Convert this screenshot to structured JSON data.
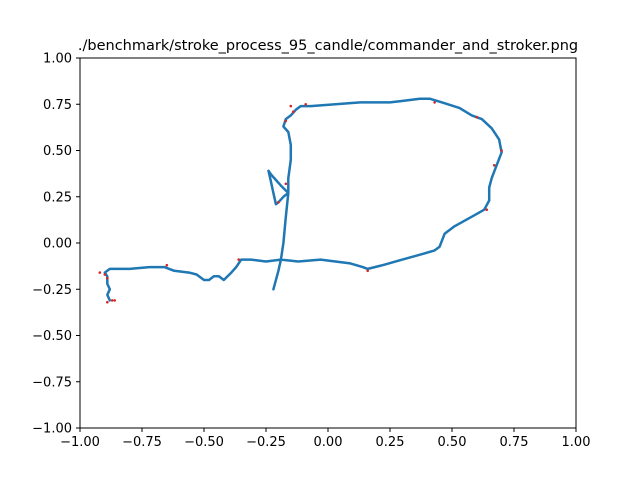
{
  "chart_data": {
    "type": "line",
    "title": "./benchmark/stroke_process_95_candle/commander_and_stroker.png",
    "xlabel": "",
    "ylabel": "",
    "xlim": [
      -1.0,
      1.0
    ],
    "ylim": [
      -1.0,
      1.0
    ],
    "xticks": [
      "−1.00",
      "−0.75",
      "−0.50",
      "−0.25",
      "0.00",
      "0.25",
      "0.50",
      "0.75",
      "1.00"
    ],
    "yticks": [
      "−1.00",
      "−0.75",
      "−0.50",
      "−0.25",
      "0.00",
      "0.25",
      "0.50",
      "0.75",
      "1.00"
    ],
    "grid": false,
    "colors": {
      "stroke": "#1f77b4",
      "points": "#d62728"
    },
    "series": [
      {
        "color": "#1f77b4",
        "points": [
          [
            -0.88,
            -0.31
          ],
          [
            -0.89,
            -0.28
          ],
          [
            -0.88,
            -0.25
          ],
          [
            -0.89,
            -0.22
          ],
          [
            -0.89,
            -0.18
          ],
          [
            -0.9,
            -0.16
          ],
          [
            -0.88,
            -0.14
          ],
          [
            -0.8,
            -0.14
          ],
          [
            -0.72,
            -0.13
          ],
          [
            -0.66,
            -0.13
          ],
          [
            -0.62,
            -0.15
          ],
          [
            -0.56,
            -0.16
          ],
          [
            -0.53,
            -0.17
          ],
          [
            -0.5,
            -0.2
          ],
          [
            -0.48,
            -0.2
          ],
          [
            -0.46,
            -0.18
          ],
          [
            -0.44,
            -0.18
          ],
          [
            -0.42,
            -0.2
          ],
          [
            -0.39,
            -0.16
          ],
          [
            -0.37,
            -0.13
          ],
          [
            -0.35,
            -0.09
          ],
          [
            -0.31,
            -0.09
          ],
          [
            -0.25,
            -0.1
          ],
          [
            -0.19,
            -0.09
          ],
          [
            -0.12,
            -0.1
          ],
          [
            -0.03,
            -0.09
          ],
          [
            0.03,
            -0.1
          ],
          [
            0.09,
            -0.11
          ],
          [
            0.14,
            -0.13
          ],
          [
            0.16,
            -0.14
          ],
          [
            0.22,
            -0.12
          ],
          [
            0.3,
            -0.09
          ],
          [
            0.38,
            -0.06
          ],
          [
            0.43,
            -0.04
          ],
          [
            0.45,
            -0.02
          ],
          [
            0.47,
            0.05
          ],
          [
            0.51,
            0.09
          ],
          [
            0.55,
            0.12
          ],
          [
            0.59,
            0.15
          ],
          [
            0.63,
            0.18
          ],
          [
            0.65,
            0.23
          ],
          [
            0.65,
            0.3
          ],
          [
            0.66,
            0.35
          ],
          [
            0.68,
            0.42
          ],
          [
            0.7,
            0.49
          ],
          [
            0.69,
            0.56
          ],
          [
            0.66,
            0.62
          ],
          [
            0.62,
            0.67
          ],
          [
            0.58,
            0.69
          ],
          [
            0.53,
            0.73
          ],
          [
            0.46,
            0.76
          ],
          [
            0.41,
            0.78
          ],
          [
            0.37,
            0.78
          ],
          [
            0.31,
            0.77
          ],
          [
            0.25,
            0.76
          ],
          [
            0.19,
            0.76
          ],
          [
            0.13,
            0.76
          ],
          [
            0.03,
            0.75
          ],
          [
            -0.07,
            0.74
          ],
          [
            -0.11,
            0.74
          ],
          [
            -0.13,
            0.72
          ],
          [
            -0.15,
            0.69
          ],
          [
            -0.17,
            0.67
          ],
          [
            -0.18,
            0.63
          ],
          [
            -0.16,
            0.6
          ],
          [
            -0.15,
            0.53
          ],
          [
            -0.15,
            0.45
          ],
          [
            -0.16,
            0.35
          ],
          [
            -0.16,
            0.27
          ],
          [
            -0.17,
            0.14
          ],
          [
            -0.18,
            0.0
          ],
          [
            -0.19,
            -0.09
          ],
          [
            -0.2,
            -0.15
          ],
          [
            -0.22,
            -0.25
          ]
        ]
      },
      {
        "color": "#1f77b4",
        "points": [
          [
            -0.24,
            0.39
          ],
          [
            -0.23,
            0.33
          ],
          [
            -0.22,
            0.27
          ],
          [
            -0.21,
            0.21
          ],
          [
            -0.2,
            0.22
          ],
          [
            -0.18,
            0.25
          ],
          [
            -0.16,
            0.27
          ],
          [
            -0.19,
            0.31
          ],
          [
            -0.23,
            0.37
          ],
          [
            -0.24,
            0.39
          ]
        ]
      }
    ],
    "red_points": [
      [
        -0.92,
        -0.16
      ],
      [
        -0.9,
        -0.17
      ],
      [
        -0.89,
        -0.19
      ],
      [
        -0.87,
        -0.31
      ],
      [
        -0.89,
        -0.32
      ],
      [
        -0.86,
        -0.31
      ],
      [
        -0.65,
        -0.12
      ],
      [
        -0.36,
        -0.09
      ],
      [
        0.16,
        -0.15
      ],
      [
        0.64,
        0.18
      ],
      [
        0.7,
        0.5
      ],
      [
        0.67,
        0.42
      ],
      [
        0.6,
        0.68
      ],
      [
        0.43,
        0.76
      ],
      [
        -0.09,
        0.75
      ],
      [
        -0.15,
        0.74
      ],
      [
        -0.17,
        0.66
      ],
      [
        -0.17,
        0.32
      ],
      [
        -0.2,
        0.22
      ],
      [
        -0.14,
        0.71
      ]
    ]
  }
}
